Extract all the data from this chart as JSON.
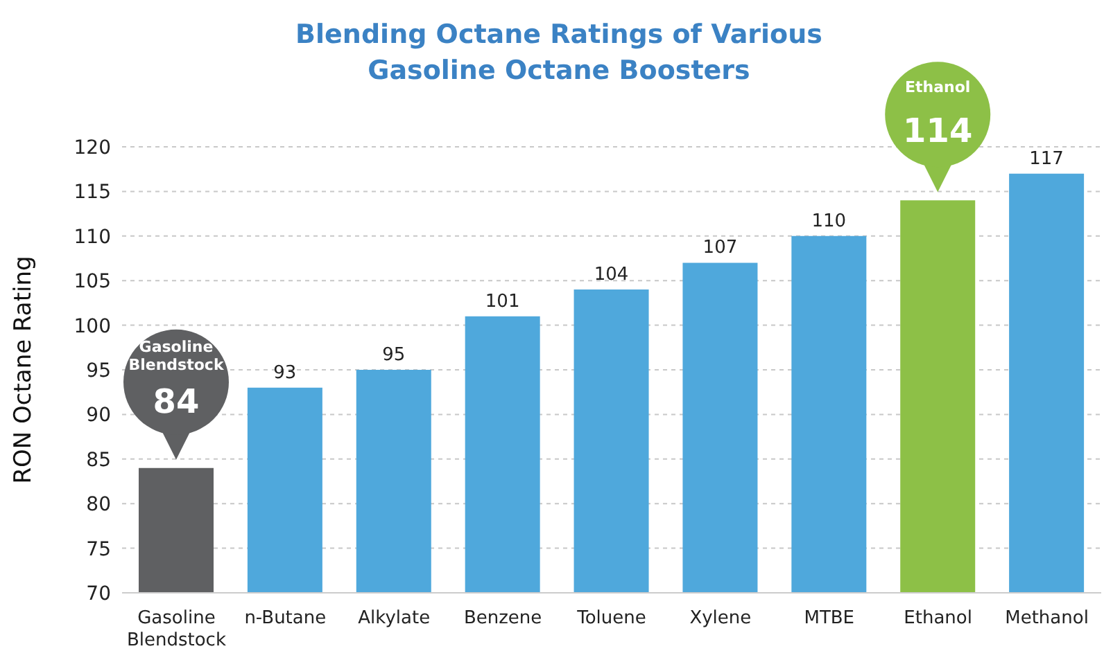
{
  "chart_data": {
    "type": "bar",
    "title": "Blending Octane Ratings of Various\nGasoline Octane Boosters",
    "ylabel": "RON Octane Rating",
    "categories": [
      "Gasoline Blendstock",
      "n-Butane",
      "Alkylate",
      "Benzene",
      "Toluene",
      "Xylene",
      "MTBE",
      "Ethanol",
      "Methanol"
    ],
    "values": [
      84,
      93,
      95,
      101,
      104,
      107,
      110,
      114,
      117
    ],
    "colors": [
      "#5f6062",
      "#4fa8dc",
      "#4fa8dc",
      "#4fa8dc",
      "#4fa8dc",
      "#4fa8dc",
      "#4fa8dc",
      "#8dc047",
      "#4fa8dc"
    ],
    "value_labels": [
      "84",
      "93",
      "95",
      "101",
      "104",
      "107",
      "110",
      "114",
      "117"
    ],
    "annotations": [
      "Gasoline Blendstock",
      "Ethanol"
    ],
    "ylim": [
      70,
      120
    ],
    "yticks": [
      70,
      75,
      80,
      85,
      90,
      95,
      100,
      105,
      110,
      115,
      120
    ],
    "grid": "y"
  }
}
